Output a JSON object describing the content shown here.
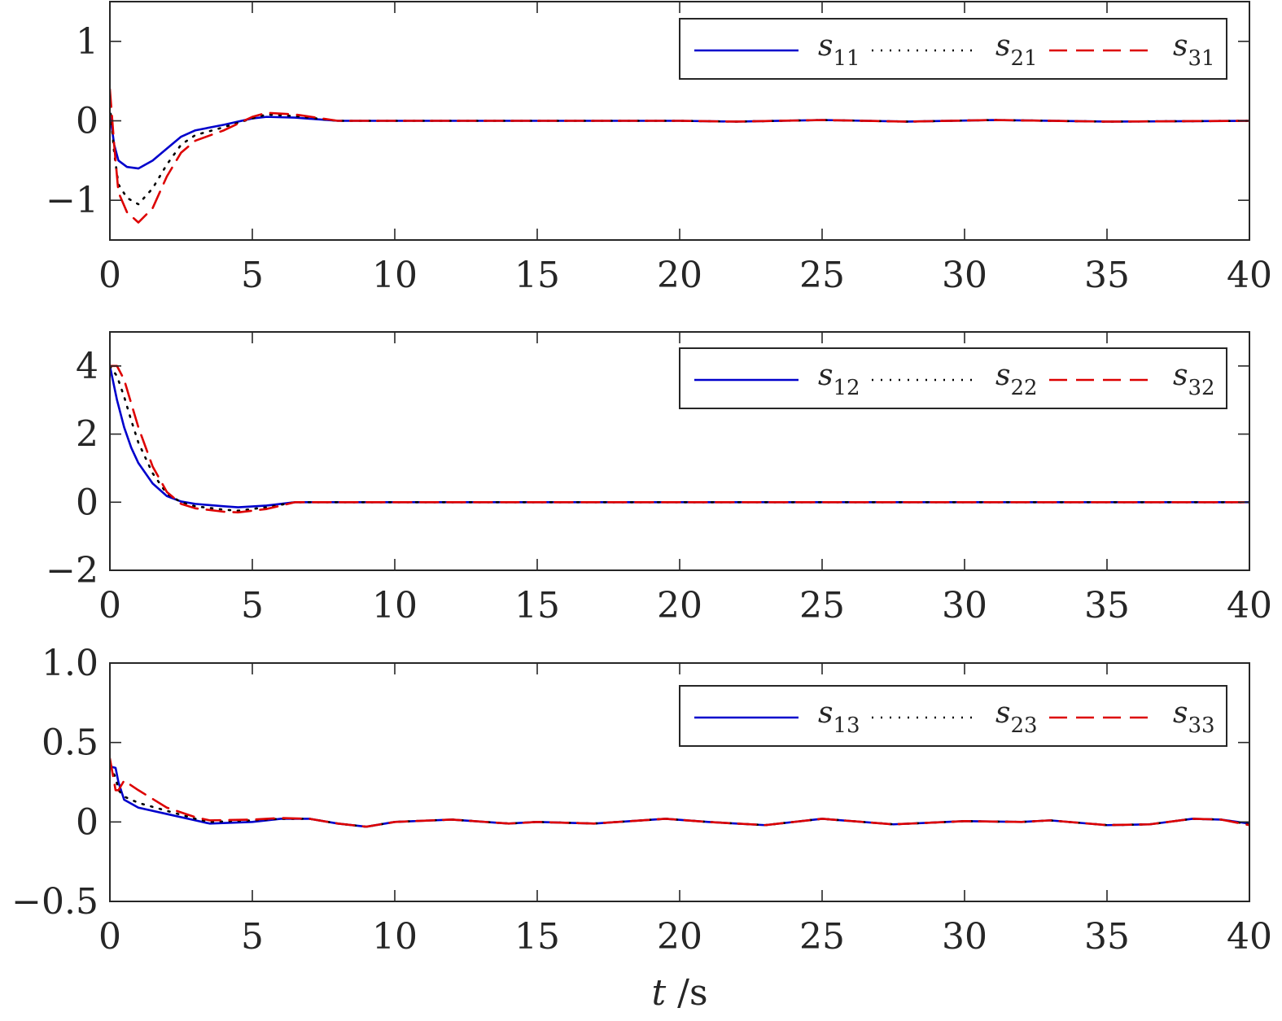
{
  "chart_data": [
    {
      "type": "line",
      "ylim": [
        -1.5,
        1.5
      ],
      "xlim": [
        0,
        40
      ],
      "xticks": [
        0,
        5,
        10,
        15,
        20,
        25,
        30,
        35,
        40
      ],
      "yticks": [
        -1,
        0,
        1
      ],
      "ytick_labels": [
        "−1",
        "0",
        "1"
      ],
      "xlabel": "",
      "legend": "top-right",
      "series": [
        {
          "name": "s11",
          "color": "#0000cc",
          "style": "solid",
          "x": [
            0,
            0.15,
            0.3,
            0.6,
            1.0,
            1.5,
            2.0,
            2.5,
            3.0,
            4.0,
            5.0,
            5.5,
            6.5,
            8,
            10,
            15,
            20,
            22,
            25,
            28,
            31,
            35,
            40
          ],
          "y": [
            0.1,
            -0.3,
            -0.5,
            -0.58,
            -0.6,
            -0.5,
            -0.35,
            -0.2,
            -0.12,
            -0.05,
            0.03,
            0.05,
            0.04,
            0.0,
            0.0,
            0.0,
            0.0,
            -0.01,
            0.01,
            -0.01,
            0.01,
            -0.01,
            0.0
          ]
        },
        {
          "name": "s21",
          "color": "#000000",
          "style": "dotted",
          "x": [
            0,
            0.15,
            0.3,
            0.6,
            1.0,
            1.5,
            2.0,
            2.5,
            3.0,
            4.0,
            5.0,
            5.5,
            6.5,
            8,
            10,
            15,
            20,
            22,
            25,
            28,
            31,
            35,
            40
          ],
          "y": [
            0.2,
            -0.4,
            -0.8,
            -0.97,
            -1.05,
            -0.85,
            -0.55,
            -0.3,
            -0.18,
            -0.08,
            0.03,
            0.08,
            0.06,
            0.0,
            0.0,
            0.0,
            0.0,
            -0.01,
            0.01,
            -0.01,
            0.01,
            -0.01,
            0.0
          ]
        },
        {
          "name": "s31",
          "color": "#dd0000",
          "style": "dashed",
          "x": [
            0,
            0.15,
            0.3,
            0.6,
            1.0,
            1.5,
            2.0,
            2.5,
            3.0,
            4.0,
            5.0,
            5.5,
            6.5,
            8,
            10,
            15,
            20,
            22,
            25,
            28,
            31,
            35,
            40
          ],
          "y": [
            0.4,
            -0.3,
            -0.9,
            -1.15,
            -1.28,
            -1.1,
            -0.7,
            -0.4,
            -0.25,
            -0.12,
            0.05,
            0.1,
            0.08,
            0.0,
            0.0,
            0.0,
            0.0,
            -0.01,
            0.01,
            -0.01,
            0.01,
            -0.01,
            0.0
          ]
        }
      ]
    },
    {
      "type": "line",
      "ylim": [
        -2,
        5
      ],
      "xlim": [
        0,
        40
      ],
      "xticks": [
        0,
        5,
        10,
        15,
        20,
        25,
        30,
        35,
        40
      ],
      "yticks": [
        -2,
        0,
        2,
        4
      ],
      "ytick_labels": [
        "−2",
        "0",
        "2",
        "4"
      ],
      "xlabel": "",
      "legend": "top-right",
      "series": [
        {
          "name": "s12",
          "color": "#0000cc",
          "style": "solid",
          "x": [
            0,
            0.25,
            0.5,
            0.75,
            1.0,
            1.5,
            2.0,
            2.5,
            3.0,
            4.0,
            4.5,
            5.5,
            6.5,
            8,
            10,
            15,
            20,
            25,
            30,
            35,
            40
          ],
          "y": [
            4.0,
            3.0,
            2.2,
            1.6,
            1.15,
            0.55,
            0.18,
            0.02,
            -0.05,
            -0.12,
            -0.15,
            -0.1,
            0.0,
            0.0,
            0.0,
            0.0,
            0.0,
            0.0,
            0.0,
            0.0,
            0.0
          ]
        },
        {
          "name": "s22",
          "color": "#000000",
          "style": "dotted",
          "x": [
            0,
            0.25,
            0.5,
            0.75,
            1.0,
            1.5,
            2.0,
            2.5,
            3.0,
            4.0,
            4.5,
            5.5,
            6.5,
            8,
            10,
            15,
            20,
            25,
            30,
            35,
            40
          ],
          "y": [
            4.0,
            3.7,
            3.1,
            2.4,
            1.75,
            0.85,
            0.25,
            0.0,
            -0.12,
            -0.22,
            -0.25,
            -0.15,
            0.0,
            0.0,
            0.0,
            0.0,
            0.0,
            0.0,
            0.0,
            0.0,
            0.0
          ]
        },
        {
          "name": "s32",
          "color": "#dd0000",
          "style": "dashed",
          "x": [
            0,
            0.25,
            0.5,
            0.75,
            1.0,
            1.5,
            2.0,
            2.5,
            3.0,
            4.0,
            4.5,
            5.5,
            6.5,
            8,
            10,
            15,
            20,
            25,
            30,
            35,
            40
          ],
          "y": [
            4.0,
            4.0,
            3.6,
            2.9,
            2.2,
            1.05,
            0.3,
            -0.05,
            -0.18,
            -0.28,
            -0.3,
            -0.2,
            0.0,
            0.0,
            0.0,
            0.0,
            0.0,
            0.0,
            0.0,
            0.0,
            0.0
          ]
        }
      ]
    },
    {
      "type": "line",
      "ylim": [
        -0.5,
        1.0
      ],
      "xlim": [
        0,
        40
      ],
      "xticks": [
        0,
        5,
        10,
        15,
        20,
        25,
        30,
        35,
        40
      ],
      "yticks": [
        -0.5,
        0,
        0.5,
        1.0
      ],
      "ytick_labels": [
        "−0.5",
        "0",
        "0.5",
        "1.0"
      ],
      "xlabel": "t /s",
      "legend": "top-right",
      "series": [
        {
          "name": "s13",
          "color": "#0000cc",
          "style": "solid",
          "x": [
            0,
            0.2,
            0.3,
            0.5,
            1.0,
            2.0,
            3.0,
            3.5,
            5.0,
            6.0,
            7.0,
            8.0,
            9.0,
            10.0,
            12.0,
            14.0,
            15.0,
            17.0,
            19.5,
            21.0,
            23.0,
            25.0,
            27.5,
            30.0,
            32.0,
            33.0,
            35.0,
            36.5,
            38.0,
            39.0,
            40.0
          ],
          "y": [
            0.35,
            0.34,
            0.25,
            0.14,
            0.09,
            0.05,
            0.01,
            -0.01,
            0.0,
            0.02,
            0.02,
            -0.01,
            -0.03,
            0.0,
            0.015,
            -0.01,
            0.0,
            -0.01,
            0.02,
            0.0,
            -0.02,
            0.02,
            -0.015,
            0.005,
            0.0,
            0.01,
            -0.02,
            -0.015,
            0.02,
            0.015,
            -0.01
          ]
        },
        {
          "name": "s23",
          "color": "#000000",
          "style": "dotted",
          "x": [
            0,
            0.2,
            0.3,
            0.5,
            1.0,
            2.0,
            3.0,
            3.5,
            5.0,
            6.0,
            7.0,
            8.0,
            9.0,
            10.0,
            12.0,
            14.0,
            15.0,
            17.0,
            19.5,
            21.0,
            23.0,
            25.0,
            27.5,
            30.0,
            32.0,
            33.0,
            35.0,
            36.5,
            38.0,
            39.0,
            40.0
          ],
          "y": [
            0.35,
            0.28,
            0.2,
            0.16,
            0.12,
            0.07,
            0.02,
            0.0,
            0.01,
            0.02,
            0.02,
            -0.01,
            -0.03,
            0.0,
            0.015,
            -0.01,
            0.0,
            -0.01,
            0.02,
            0.0,
            -0.02,
            0.02,
            -0.015,
            0.005,
            0.0,
            0.01,
            -0.02,
            -0.015,
            0.02,
            0.015,
            -0.015
          ]
        },
        {
          "name": "s33",
          "color": "#dd0000",
          "style": "dashed",
          "x": [
            0,
            0.2,
            0.3,
            0.5,
            1.0,
            2.0,
            3.0,
            3.5,
            5.0,
            6.0,
            7.0,
            8.0,
            9.0,
            10.0,
            12.0,
            14.0,
            15.0,
            17.0,
            19.5,
            21.0,
            23.0,
            25.0,
            27.5,
            30.0,
            32.0,
            33.0,
            35.0,
            36.5,
            38.0,
            39.0,
            40.0
          ],
          "y": [
            0.4,
            0.2,
            0.2,
            0.26,
            0.2,
            0.09,
            0.03,
            0.01,
            0.015,
            0.025,
            0.02,
            -0.01,
            -0.03,
            0.0,
            0.015,
            -0.01,
            0.0,
            -0.01,
            0.02,
            0.0,
            -0.02,
            0.02,
            -0.015,
            0.005,
            0.0,
            0.01,
            -0.02,
            -0.015,
            0.02,
            0.015,
            -0.02
          ]
        }
      ]
    }
  ]
}
